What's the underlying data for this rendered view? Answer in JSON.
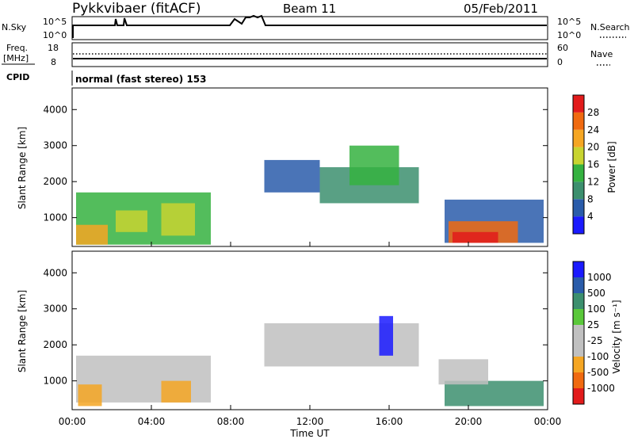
{
  "header": {
    "station": "Pykkvibaer (fitACF)",
    "beam": "Beam 11",
    "date": "05/Feb/2011"
  },
  "top_panels": {
    "nsky_label": "N.Sky",
    "nsky_ticks": [
      "10^5",
      "10^0"
    ],
    "nsearch_label": "N.Search",
    "nsearch_ticks": [
      "10^5",
      "10^0"
    ],
    "freq_label_1": "Freq.",
    "freq_label_2": "[MHz]",
    "freq_ticks": [
      "18",
      "8"
    ],
    "nave_label": "Nave",
    "nave_ticks": [
      "60",
      "0"
    ],
    "cpid_label": "CPID",
    "cpid_text": "normal (fast stereo) 153"
  },
  "colors": {
    "power_scale": [
      "#1a1aff",
      "#2a5caa",
      "#3c8f6e",
      "#35b240",
      "#c8d430",
      "#f5a623",
      "#f06a10",
      "#e21b1b"
    ],
    "velocity_scale": [
      "#1a1aff",
      "#2a5caa",
      "#3c8f6e",
      "#5ac83a",
      "#c0c0c0",
      "#c0c0c0",
      "#f5a623",
      "#f06a10",
      "#e21b1b"
    ]
  },
  "chart_data": [
    {
      "type": "heatmap",
      "name": "power",
      "ylabel": "Slant Range [km]",
      "yticks": [
        "1000",
        "2000",
        "3000",
        "4000"
      ],
      "ylim": [
        200,
        4600
      ],
      "xlim": [
        0,
        24
      ],
      "colorbar_label": "Power [dB]",
      "colorbar_ticks": [
        "4",
        "8",
        "12",
        "16",
        "20",
        "24",
        "28"
      ],
      "regions": [
        {
          "t0": 0.2,
          "t1": 7.0,
          "r0": 250,
          "r1": 1700,
          "c": 3
        },
        {
          "t0": 0.2,
          "t1": 1.8,
          "r0": 250,
          "r1": 800,
          "c": 5
        },
        {
          "t0": 2.2,
          "t1": 3.8,
          "r0": 600,
          "r1": 1200,
          "c": 4
        },
        {
          "t0": 4.5,
          "t1": 6.2,
          "r0": 500,
          "r1": 1400,
          "c": 4
        },
        {
          "t0": 9.7,
          "t1": 12.5,
          "r0": 1700,
          "r1": 2600,
          "c": 1
        },
        {
          "t0": 12.5,
          "t1": 17.5,
          "r0": 1400,
          "r1": 2400,
          "c": 2
        },
        {
          "t0": 14.0,
          "t1": 16.5,
          "r0": 1900,
          "r1": 3000,
          "c": 3
        },
        {
          "t0": 18.8,
          "t1": 23.8,
          "r0": 300,
          "r1": 1500,
          "c": 1
        },
        {
          "t0": 19.0,
          "t1": 22.5,
          "r0": 300,
          "r1": 900,
          "c": 6
        },
        {
          "t0": 19.2,
          "t1": 21.5,
          "r0": 300,
          "r1": 600,
          "c": 7
        }
      ]
    },
    {
      "type": "heatmap",
      "name": "velocity",
      "ylabel": "Slant Range [km]",
      "yticks": [
        "1000",
        "2000",
        "3000",
        "4000"
      ],
      "ylim": [
        200,
        4600
      ],
      "xlim": [
        0,
        24
      ],
      "xlabel": "Time UT",
      "xticks": [
        "00:00",
        "04:00",
        "08:00",
        "12:00",
        "16:00",
        "20:00",
        "00:00"
      ],
      "colorbar_label": "Velocity [m s⁻¹]",
      "colorbar_ticks": [
        "1000",
        "500",
        "100",
        "25",
        "-25",
        "-100",
        "-500",
        "-1000"
      ],
      "regions": [
        {
          "t0": 0.2,
          "t1": 7.0,
          "r0": 400,
          "r1": 1700,
          "c": 4
        },
        {
          "t0": 0.3,
          "t1": 1.5,
          "r0": 300,
          "r1": 900,
          "c": 6
        },
        {
          "t0": 4.5,
          "t1": 6.0,
          "r0": 400,
          "r1": 1000,
          "c": 6
        },
        {
          "t0": 9.7,
          "t1": 17.5,
          "r0": 1400,
          "r1": 2600,
          "c": 4
        },
        {
          "t0": 15.5,
          "t1": 16.2,
          "r0": 1700,
          "r1": 2800,
          "c": 0
        },
        {
          "t0": 18.8,
          "t1": 23.8,
          "r0": 300,
          "r1": 1000,
          "c": 2
        },
        {
          "t0": 18.5,
          "t1": 21.0,
          "r0": 900,
          "r1": 1600,
          "c": 4
        }
      ]
    }
  ]
}
